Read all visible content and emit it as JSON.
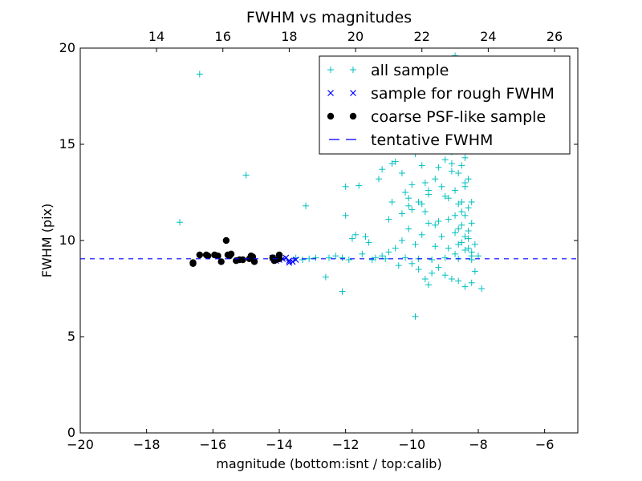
{
  "chart_data": {
    "type": "scatter",
    "title": "FWHM vs magnitudes",
    "xlabel": "magnitude (bottom:isnt / top:calib)",
    "ylabel": "FWHM (pix)",
    "xlim": [
      -20,
      -5
    ],
    "ylim": [
      0,
      20
    ],
    "x_ticks": [
      -20,
      -18,
      -16,
      -14,
      -12,
      -10,
      -8,
      -6
    ],
    "y_ticks": [
      0,
      5,
      10,
      15,
      20
    ],
    "top_axis": {
      "offset": 31.7,
      "ticks": [
        14,
        16,
        18,
        20,
        22,
        24,
        26
      ]
    },
    "grid": false,
    "legend_position": "top-right",
    "colors": {
      "all_sample": "#00bfbf",
      "rough": "#0000ff",
      "coarse": "#000000",
      "tentative": "#0000ff"
    },
    "tentative_fwhm": 9.05,
    "series": [
      {
        "name": "all sample",
        "marker": "plus",
        "color": "#00bfbf",
        "points": [
          [
            -16.4,
            18.65
          ],
          [
            -17.0,
            10.95
          ],
          [
            -15.0,
            13.4
          ],
          [
            -13.2,
            11.8
          ],
          [
            -12.0,
            12.8
          ],
          [
            -11.6,
            12.85
          ],
          [
            -11.0,
            13.2
          ],
          [
            -10.9,
            13.7
          ],
          [
            -10.6,
            14.0
          ],
          [
            -10.5,
            14.1
          ],
          [
            -10.6,
            12.0
          ],
          [
            -10.3,
            13.5
          ],
          [
            -10.2,
            12.5
          ],
          [
            -10.1,
            11.8
          ],
          [
            -10.0,
            12.9
          ],
          [
            -9.9,
            14.5
          ],
          [
            -9.8,
            12.0
          ],
          [
            -9.7,
            13.9
          ],
          [
            -9.6,
            11.5
          ],
          [
            -9.5,
            12.6
          ],
          [
            -9.4,
            14.8
          ],
          [
            -9.3,
            13.2
          ],
          [
            -9.2,
            11.0
          ],
          [
            -9.1,
            15.3
          ],
          [
            -9.0,
            12.3
          ],
          [
            -8.9,
            16.0
          ],
          [
            -8.8,
            14.0
          ],
          [
            -8.7,
            17.5
          ],
          [
            -8.6,
            13.5
          ],
          [
            -8.5,
            15.0
          ],
          [
            -8.5,
            11.5
          ],
          [
            -8.4,
            12.8
          ],
          [
            -8.3,
            10.5
          ],
          [
            -8.2,
            12.0
          ],
          [
            -8.1,
            9.8
          ],
          [
            -8.0,
            9.2
          ],
          [
            -8.7,
            19.6
          ],
          [
            -8.9,
            18.0
          ],
          [
            -9.0,
            16.5
          ],
          [
            -8.6,
            16.8
          ],
          [
            -8.4,
            16.2
          ],
          [
            -8.8,
            15.5
          ],
          [
            -8.5,
            13.9
          ],
          [
            -8.3,
            13.2
          ],
          [
            -8.7,
            12.6
          ],
          [
            -8.6,
            11.9
          ],
          [
            -8.4,
            11.3
          ],
          [
            -8.5,
            10.8
          ],
          [
            -8.3,
            10.1
          ],
          [
            -8.6,
            9.8
          ],
          [
            -8.4,
            9.5
          ],
          [
            -8.2,
            9.2
          ],
          [
            -8.7,
            10.4
          ],
          [
            -8.9,
            11.1
          ],
          [
            -9.1,
            10.2
          ],
          [
            -9.3,
            9.7
          ],
          [
            -9.5,
            10.9
          ],
          [
            -9.7,
            10.3
          ],
          [
            -9.9,
            9.8
          ],
          [
            -10.1,
            10.6
          ],
          [
            -10.3,
            10.0
          ],
          [
            -10.5,
            9.6
          ],
          [
            -10.7,
            9.4
          ],
          [
            -10.9,
            9.2
          ],
          [
            -11.1,
            9.1
          ],
          [
            -11.3,
            9.9
          ],
          [
            -11.5,
            9.3
          ],
          [
            -11.7,
            10.3
          ],
          [
            -11.9,
            9.0
          ],
          [
            -12.1,
            9.1
          ],
          [
            -12.3,
            9.2
          ],
          [
            -12.5,
            9.1
          ],
          [
            -12.6,
            8.1
          ],
          [
            -12.1,
            7.35
          ],
          [
            -10.4,
            8.7
          ],
          [
            -10.0,
            8.8
          ],
          [
            -9.8,
            8.5
          ],
          [
            -9.6,
            8.0
          ],
          [
            -9.4,
            8.3
          ],
          [
            -9.2,
            8.6
          ],
          [
            -9.0,
            8.2
          ],
          [
            -8.8,
            8.0
          ],
          [
            -8.6,
            7.9
          ],
          [
            -8.4,
            7.6
          ],
          [
            -8.2,
            7.8
          ],
          [
            -7.9,
            7.5
          ],
          [
            -8.1,
            8.4
          ],
          [
            -9.5,
            7.7
          ],
          [
            -9.9,
            6.05
          ],
          [
            -12.9,
            9.1
          ],
          [
            -13.1,
            9.05
          ],
          [
            -13.3,
            9.0
          ],
          [
            -13.5,
            9.1
          ],
          [
            -11.2,
            9.0
          ],
          [
            -10.8,
            9.05
          ],
          [
            -10.2,
            9.1
          ],
          [
            -9.8,
            9.05
          ],
          [
            -9.4,
            9.0
          ],
          [
            -9.0,
            9.1
          ],
          [
            -8.6,
            9.05
          ],
          [
            -8.2,
            9.0
          ],
          [
            -11.8,
            10.1
          ],
          [
            -11.4,
            10.2
          ],
          [
            -12.0,
            11.3
          ],
          [
            -10.7,
            11.1
          ],
          [
            -10.0,
            11.6
          ],
          [
            -9.6,
            13.0
          ],
          [
            -9.2,
            13.8
          ],
          [
            -8.8,
            14.6
          ],
          [
            -8.4,
            14.3
          ],
          [
            -8.9,
            12.2
          ],
          [
            -9.1,
            12.8
          ],
          [
            -8.5,
            12.0
          ],
          [
            -8.3,
            11.7
          ],
          [
            -8.7,
            11.3
          ],
          [
            -8.2,
            10.9
          ],
          [
            -8.6,
            10.6
          ],
          [
            -8.4,
            10.2
          ],
          [
            -8.5,
            9.9
          ],
          [
            -8.3,
            9.6
          ],
          [
            -8.7,
            9.3
          ],
          [
            -8.9,
            9.6
          ],
          [
            -9.3,
            10.8
          ],
          [
            -9.7,
            11.9
          ],
          [
            -10.1,
            12.2
          ],
          [
            -10.3,
            11.4
          ],
          [
            -9.5,
            12.4
          ],
          [
            -9.0,
            14.2
          ],
          [
            -8.8,
            13.6
          ],
          [
            -8.6,
            15.7
          ],
          [
            -8.4,
            13.0
          ],
          [
            -8.2,
            9.4
          ]
        ]
      },
      {
        "name": "sample for rough FWHM",
        "marker": "x",
        "color": "#0000ff",
        "points": [
          [
            -14.2,
            9.1
          ],
          [
            -14.0,
            9.0
          ],
          [
            -13.9,
            9.05
          ],
          [
            -13.8,
            9.1
          ],
          [
            -13.7,
            8.95
          ],
          [
            -13.6,
            8.9
          ],
          [
            -13.7,
            8.85
          ],
          [
            -14.1,
            8.95
          ],
          [
            -13.5,
            9.0
          ]
        ]
      },
      {
        "name": "coarse PSF-like sample",
        "marker": "dot",
        "color": "#000000",
        "points": [
          [
            -16.6,
            8.85
          ],
          [
            -16.6,
            8.8
          ],
          [
            -16.4,
            9.25
          ],
          [
            -16.2,
            9.25
          ],
          [
            -16.15,
            9.2
          ],
          [
            -15.95,
            9.25
          ],
          [
            -15.85,
            9.2
          ],
          [
            -15.75,
            8.9
          ],
          [
            -15.6,
            10.0
          ],
          [
            -15.55,
            9.25
          ],
          [
            -15.5,
            9.2
          ],
          [
            -15.45,
            9.3
          ],
          [
            -15.3,
            8.95
          ],
          [
            -15.2,
            9.0
          ],
          [
            -15.1,
            9.0
          ],
          [
            -14.9,
            9.05
          ],
          [
            -14.85,
            9.2
          ],
          [
            -14.8,
            9.15
          ],
          [
            -14.75,
            8.9
          ],
          [
            -14.2,
            9.1
          ],
          [
            -14.15,
            8.95
          ],
          [
            -14.1,
            9.0
          ],
          [
            -14.0,
            9.05
          ],
          [
            -14.0,
            9.25
          ]
        ]
      },
      {
        "name": "tentative FWHM",
        "marker": "dashed-line",
        "color": "#0000ff",
        "y": 9.05
      }
    ]
  }
}
